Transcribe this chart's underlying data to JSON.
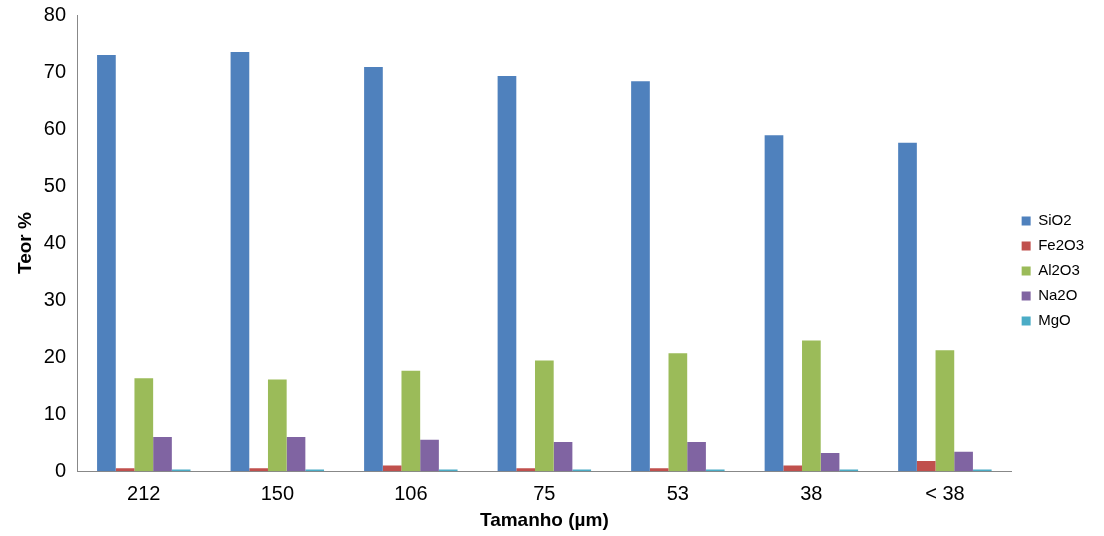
{
  "chart_data": {
    "type": "bar",
    "xlabel": "Tamanho (µm)",
    "ylabel": "Teor %",
    "categories": [
      "212",
      "150",
      "106",
      "75",
      "53",
      "38",
      "< 38"
    ],
    "series": [
      {
        "name": "SiO2",
        "color": "#4f81bd",
        "values": [
          73.0,
          73.5,
          70.9,
          69.3,
          68.4,
          58.9,
          57.6
        ]
      },
      {
        "name": "Fe2O3",
        "color": "#c0504d",
        "values": [
          0.5,
          0.5,
          1.0,
          0.5,
          0.5,
          1.0,
          1.8
        ]
      },
      {
        "name": "Al2O3",
        "color": "#9bbb59",
        "values": [
          16.3,
          16.1,
          17.6,
          19.4,
          20.7,
          22.9,
          21.2
        ]
      },
      {
        "name": "Na2O",
        "color": "#8064a2",
        "values": [
          6.0,
          6.0,
          5.5,
          5.1,
          5.1,
          3.2,
          3.4
        ]
      },
      {
        "name": "MgO",
        "color": "#4bacc6",
        "values": [
          0.3,
          0.3,
          0.3,
          0.3,
          0.3,
          0.3,
          0.3
        ]
      }
    ],
    "ylim": [
      0,
      80
    ],
    "yticks": [
      0,
      10,
      20,
      30,
      40,
      50,
      60,
      70,
      80
    ],
    "grid": false,
    "legend": "right"
  }
}
